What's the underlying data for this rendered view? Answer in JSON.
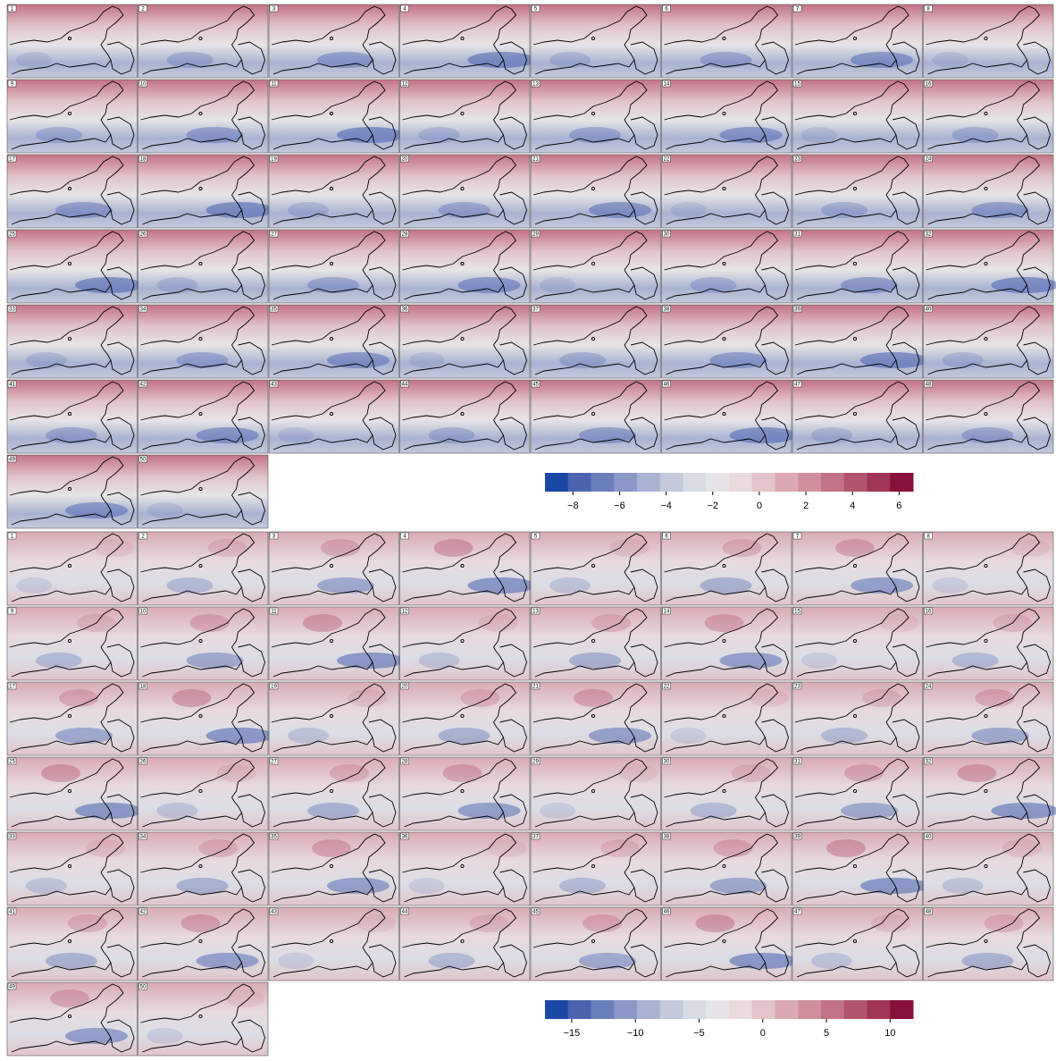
{
  "panels": [
    {
      "labels": [
        "1",
        "2",
        "3",
        "4",
        "5",
        "6",
        "7",
        "8",
        "9",
        "10",
        "11",
        "12",
        "13",
        "14",
        "15",
        "16",
        "17",
        "18",
        "19",
        "20",
        "21",
        "22",
        "23",
        "24",
        "25",
        "26",
        "27",
        "28",
        "29",
        "30",
        "31",
        "32",
        "33",
        "34",
        "35",
        "36",
        "37",
        "38",
        "39",
        "40",
        "41",
        "42",
        "43",
        "44",
        "45",
        "46",
        "47",
        "48",
        "49",
        "50"
      ]
    },
    {
      "labels": [
        "1",
        "2",
        "3",
        "4",
        "5",
        "6",
        "7",
        "8",
        "9",
        "10",
        "11",
        "12",
        "13",
        "14",
        "15",
        "16",
        "17",
        "18",
        "19",
        "20",
        "21",
        "22",
        "23",
        "24",
        "25",
        "26",
        "27",
        "28",
        "29",
        "30",
        "31",
        "32",
        "33",
        "34",
        "35",
        "36",
        "37",
        "38",
        "39",
        "40",
        "41",
        "42",
        "43",
        "44",
        "45",
        "46",
        "47",
        "48",
        "49",
        "50"
      ]
    }
  ],
  "colorbars": [
    {
      "lim": [
        -9.2,
        6.6
      ],
      "ticks": [
        {
          "value": -8,
          "label": "−8"
        },
        {
          "value": -6,
          "label": "−6"
        },
        {
          "value": -4,
          "label": "−4"
        },
        {
          "value": -2,
          "label": "−2"
        },
        0,
        2,
        4,
        6
      ],
      "colors": [
        "#1a47a6",
        "#4a64b0",
        "#6b7fbb",
        "#8b99c7",
        "#a9b2d2",
        "#c4c9dc",
        "#d9dbe4",
        "#e6e4e6",
        "#e8dadd",
        "#e2c4ca",
        "#d9aab4",
        "#cf8f9d",
        "#c27286",
        "#b2546d",
        "#a03555",
        "#88103a"
      ]
    },
    {
      "lim": [
        -17.1,
        11.8
      ],
      "ticks": [
        {
          "value": -15,
          "label": "−15"
        },
        {
          "value": -10,
          "label": "−10"
        },
        {
          "value": -5,
          "label": "−5"
        },
        0,
        5,
        10
      ],
      "colors": [
        "#1a47a6",
        "#4a64b0",
        "#6b7fbb",
        "#8b99c7",
        "#a9b2d2",
        "#c4c9dc",
        "#d9dbe4",
        "#e6e4e6",
        "#e8dadd",
        "#e2c4ca",
        "#d9aab4",
        "#cf8f9d",
        "#c27286",
        "#b2546d",
        "#a03555",
        "#88103a"
      ]
    }
  ]
}
